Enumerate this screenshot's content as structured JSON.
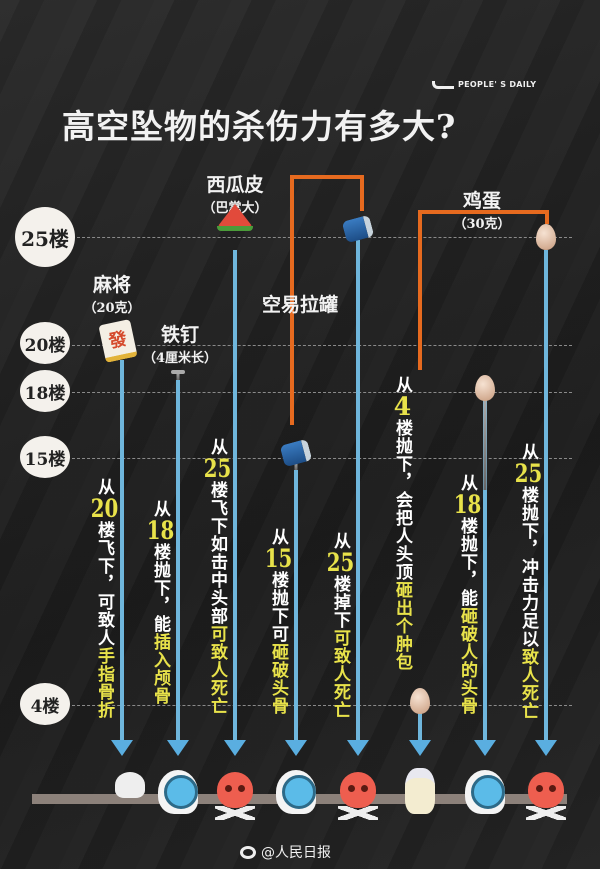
{
  "header": {
    "brand": "PEOPLE' S DAILY",
    "title": "高空坠物的杀伤力有多大?"
  },
  "floors": [
    "25楼",
    "20楼",
    "18楼",
    "15楼",
    "4楼"
  ],
  "objects": {
    "mahjong": {
      "name": "麻将",
      "note": "（20克）",
      "tile_glyph": "發"
    },
    "nail": {
      "name": "铁钉",
      "note": "（4厘米长）"
    },
    "watermelon": {
      "name": "西瓜皮",
      "note": "（巴掌大）"
    },
    "can": {
      "name": "空易拉罐"
    },
    "egg": {
      "name": "鸡蛋",
      "note": "（30克）"
    }
  },
  "columns": [
    {
      "pre": "从",
      "num": "20",
      "mid": "楼飞下，可致人",
      "result": "手指骨折",
      "icon": "finger-fracture-icon"
    },
    {
      "pre": "从",
      "num": "18",
      "mid": "楼抛下，能",
      "result": "插入颅骨",
      "icon": "skull-penetration-icon"
    },
    {
      "pre": "从",
      "num": "25",
      "mid": "楼飞下如击中头部",
      "result": "可致人死亡",
      "icon": "skull-crossbones-icon"
    },
    {
      "pre": "从",
      "num": "15",
      "mid": "楼抛下可",
      "result": "砸破头骨",
      "icon": "head-injury-icon"
    },
    {
      "pre": "从",
      "num": "25",
      "mid": "楼掉下",
      "result": "可致人死亡",
      "icon": "skull-crossbones-icon"
    },
    {
      "pre": "从",
      "num": "4",
      "mid": "楼抛下，会把人头顶",
      "result": "砸出个肿包",
      "icon": "bandaged-head-icon"
    },
    {
      "pre": "从",
      "num": "18",
      "mid": "楼抛下，能",
      "result": "砸破人的头骨",
      "icon": "head-injury-icon"
    },
    {
      "pre": "从",
      "num": "25",
      "mid": "楼抛下，冲击力足以",
      "result": "致人死亡",
      "icon": "skull-crossbones-icon"
    }
  ],
  "footer": {
    "source": "@人民日报"
  },
  "colors": {
    "background": "#222222",
    "accent_yellow": "#e8e24a",
    "line_blue": "#6fb6dc",
    "bracket_orange": "#e66a1f",
    "skull_red": "#ee5e4f"
  }
}
